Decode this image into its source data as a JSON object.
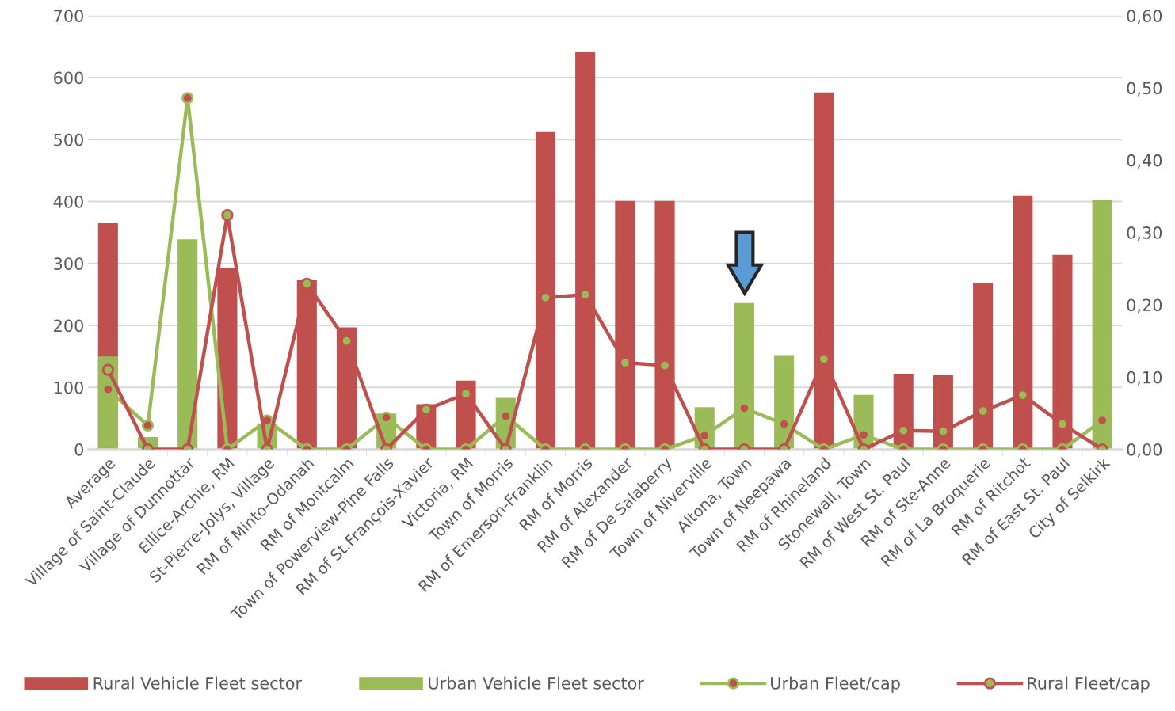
{
  "chart_data": {
    "type": "bar",
    "categories": [
      "Average",
      "Village of Saint-Claude",
      "Village of Dunnottar",
      "Ellice-Archie, RM",
      "St-Pierre-Jolys, Village",
      "RM of Minto-Odanah",
      "RM of Montcalm",
      "Town of Powerview-Pine Falls",
      "RM of St.François-Xavier",
      "Victoria, RM",
      "Town of Morris",
      "RM of Emerson-Franklin",
      "RM of Morris",
      "RM of Alexander",
      "RM of De Salaberry",
      "Town of Niverville",
      "Altona, Town",
      "Town of Neepawa",
      "RM of Rhineland",
      "Stonewall, Town",
      "RM of West St. Paul",
      "RM of Ste-Anne",
      "RM of La Broquerie",
      "RM of Ritchot",
      "RM of East St. Paul",
      "City of Selkirk"
    ],
    "series": [
      {
        "name": "Rural Vehicle Fleet sector",
        "color": "#c0504d",
        "values": [
          365,
          null,
          null,
          292,
          null,
          273,
          197,
          null,
          73,
          111,
          null,
          512,
          641,
          401,
          401,
          null,
          null,
          null,
          576,
          null,
          122,
          120,
          269,
          410,
          314,
          null
        ]
      },
      {
        "name": "Urban Vehicle Fleet sector",
        "color": "#9bbb59",
        "values": [
          150,
          20,
          339,
          null,
          41,
          null,
          null,
          58,
          null,
          null,
          83,
          null,
          null,
          null,
          null,
          68,
          236,
          152,
          null,
          88,
          null,
          null,
          null,
          null,
          null,
          402
        ]
      },
      {
        "name": "Urban Fleet/cap",
        "type": "line",
        "axis": "y2",
        "color": "#9bbb59",
        "values": [
          0.083,
          0.033,
          0.486,
          0,
          0.04,
          0,
          0,
          0.044,
          0,
          0,
          0.046,
          0,
          0,
          0,
          0,
          0.019,
          0.057,
          0.035,
          0,
          0.02,
          0,
          0,
          0,
          0,
          0,
          0.04
        ]
      },
      {
        "name": "Rural Fleet/cap",
        "type": "line",
        "axis": "y2",
        "color": "#c0504d",
        "values": [
          0.11,
          0,
          0,
          0.324,
          0,
          0.229,
          0.15,
          0,
          0.055,
          0.077,
          0,
          0.21,
          0.214,
          0.12,
          0.116,
          0,
          0,
          0,
          0.125,
          0,
          0.026,
          0.025,
          0.053,
          0.075,
          0.035,
          0
        ]
      }
    ],
    "ylim": [
      0,
      700
    ],
    "yticks": [
      0,
      100,
      200,
      300,
      400,
      500,
      600,
      700
    ],
    "y2lim": [
      0,
      0.6
    ],
    "y2ticks": [
      {
        "value": 0,
        "label": "0,00"
      },
      {
        "value": 0.1,
        "label": "0,10"
      },
      {
        "value": 0.2,
        "label": "0,20"
      },
      {
        "value": 0.3,
        "label": "0,30"
      },
      {
        "value": 0.4,
        "label": "0,40"
      },
      {
        "value": 0.5,
        "label": "0,50"
      },
      {
        "value": 0.6,
        "label": "0,60"
      }
    ],
    "grid": "y",
    "legend": "bottom",
    "marker": "circle",
    "line_style": "solid"
  }
}
